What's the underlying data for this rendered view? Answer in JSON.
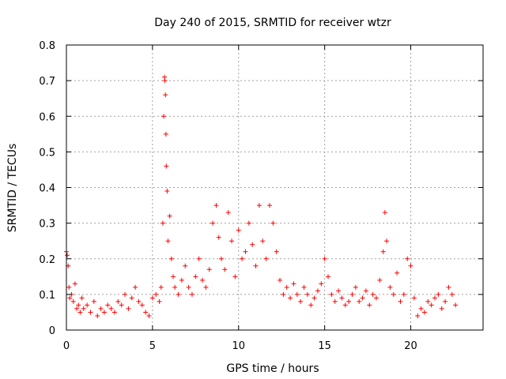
{
  "chart_data": {
    "type": "scatter",
    "title": "Day 240 of 2015, SRMTID for receiver wtzr",
    "xlabel": "GPS time / hours",
    "ylabel": "SRMTID / TECUs",
    "xlim": [
      0,
      24.2
    ],
    "ylim": [
      0,
      0.8
    ],
    "xticks": [
      0,
      5,
      10,
      15,
      20
    ],
    "yticks": [
      0,
      0.1,
      0.2,
      0.3,
      0.4,
      0.5,
      0.6,
      0.7,
      0.8
    ],
    "xtick_labels": [
      "0",
      "5",
      "10",
      "15",
      "20"
    ],
    "ytick_labels": [
      "0",
      "0.1",
      "0.2",
      "0.3",
      "0.4",
      "0.5",
      "0.6",
      "0.7",
      "0.8"
    ],
    "grid": true,
    "marker": "+",
    "color": "#ff0000",
    "series": [
      {
        "name": "SRMTID",
        "x": [
          0.0,
          0.05,
          0.1,
          0.15,
          0.2,
          0.3,
          0.4,
          0.5,
          0.6,
          0.7,
          0.8,
          0.9,
          1.0,
          1.2,
          1.4,
          1.6,
          1.8,
          2.0,
          2.2,
          2.4,
          2.6,
          2.8,
          3.0,
          3.2,
          3.4,
          3.6,
          3.8,
          4.0,
          4.2,
          4.4,
          4.6,
          4.8,
          5.0,
          5.2,
          5.4,
          5.5,
          5.6,
          5.65,
          5.7,
          5.72,
          5.75,
          5.78,
          5.8,
          5.85,
          5.9,
          6.0,
          6.1,
          6.2,
          6.3,
          6.5,
          6.7,
          6.9,
          7.1,
          7.3,
          7.5,
          7.7,
          7.9,
          8.1,
          8.3,
          8.5,
          8.7,
          8.85,
          9.0,
          9.2,
          9.4,
          9.6,
          9.8,
          10.0,
          10.2,
          10.4,
          10.6,
          10.8,
          11.0,
          11.2,
          11.4,
          11.6,
          11.8,
          12.0,
          12.2,
          12.4,
          12.6,
          12.8,
          13.0,
          13.2,
          13.4,
          13.6,
          13.8,
          14.0,
          14.2,
          14.4,
          14.6,
          14.8,
          15.0,
          15.2,
          15.4,
          15.6,
          15.8,
          16.0,
          16.2,
          16.4,
          16.6,
          16.8,
          17.0,
          17.2,
          17.4,
          17.6,
          17.8,
          18.0,
          18.2,
          18.4,
          18.5,
          18.6,
          18.8,
          19.0,
          19.2,
          19.4,
          19.6,
          19.8,
          20.0,
          20.2,
          20.4,
          20.6,
          20.8,
          21.0,
          21.2,
          21.4,
          21.6,
          21.8,
          22.0,
          22.2,
          22.4,
          22.6
        ],
        "y": [
          0.22,
          0.21,
          0.18,
          0.12,
          0.09,
          0.1,
          0.08,
          0.13,
          0.06,
          0.07,
          0.05,
          0.09,
          0.06,
          0.07,
          0.05,
          0.08,
          0.04,
          0.06,
          0.05,
          0.07,
          0.06,
          0.05,
          0.08,
          0.07,
          0.1,
          0.06,
          0.09,
          0.12,
          0.08,
          0.07,
          0.05,
          0.04,
          0.09,
          0.1,
          0.08,
          0.12,
          0.3,
          0.6,
          0.71,
          0.7,
          0.66,
          0.55,
          0.46,
          0.39,
          0.25,
          0.32,
          0.2,
          0.15,
          0.12,
          0.1,
          0.14,
          0.18,
          0.12,
          0.1,
          0.15,
          0.2,
          0.14,
          0.12,
          0.17,
          0.3,
          0.35,
          0.26,
          0.2,
          0.17,
          0.33,
          0.25,
          0.15,
          0.28,
          0.2,
          0.22,
          0.3,
          0.24,
          0.18,
          0.35,
          0.25,
          0.2,
          0.35,
          0.3,
          0.22,
          0.14,
          0.1,
          0.12,
          0.09,
          0.13,
          0.1,
          0.08,
          0.12,
          0.1,
          0.07,
          0.09,
          0.11,
          0.13,
          0.2,
          0.15,
          0.1,
          0.08,
          0.11,
          0.09,
          0.07,
          0.08,
          0.1,
          0.12,
          0.08,
          0.09,
          0.11,
          0.07,
          0.1,
          0.09,
          0.14,
          0.22,
          0.33,
          0.25,
          0.12,
          0.1,
          0.16,
          0.08,
          0.1,
          0.2,
          0.18,
          0.09,
          0.04,
          0.06,
          0.05,
          0.08,
          0.07,
          0.09,
          0.1,
          0.06,
          0.08,
          0.12,
          0.1,
          0.07
        ]
      }
    ]
  }
}
